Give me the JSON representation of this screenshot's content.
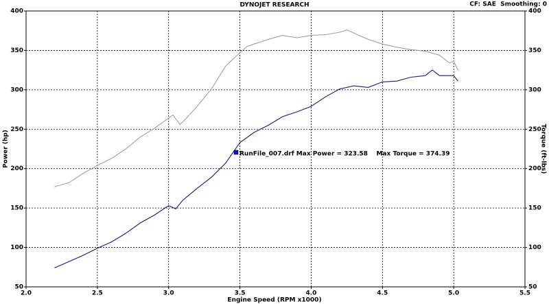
{
  "chart_data": {
    "type": "line",
    "title": "DYNOJET RESEARCH",
    "subtitle": "CF: SAE  Smoothing: 0",
    "x_label": "Engine Speed (RPM x1000)",
    "y_label": "Power (hp)",
    "y2_label": "Torque (ft-lbs)",
    "annotation": "RunFile_007.drf Max Power = 323.58    Max Torque = 374.39",
    "annotation_color": "#1010c0",
    "xlim": [
      2.0,
      5.5
    ],
    "xticks": [
      {
        "value": 2,
        "label": "2.0"
      },
      2.5,
      {
        "value": 3,
        "label": "3.0"
      },
      3.5,
      {
        "value": 4,
        "label": "4.0"
      },
      4.5,
      {
        "value": 5,
        "label": "5.0"
      },
      5.5
    ],
    "ylim": [
      50,
      400
    ],
    "yticks": [
      50,
      100,
      150,
      200,
      250,
      300,
      350,
      400
    ],
    "y2lim": [
      50,
      400
    ],
    "y2ticks": [
      50,
      100,
      150,
      200,
      250,
      300,
      350,
      400
    ],
    "grid": true,
    "series": [
      {
        "color": "#1a1a6e",
        "axis": "y",
        "x": [
          2.2,
          2.4,
          2.5,
          2.6,
          2.7,
          2.8,
          2.9,
          3.0,
          3.05,
          3.1,
          3.2,
          3.3,
          3.4,
          3.5,
          3.6,
          3.7,
          3.8,
          3.9,
          4.0,
          4.1,
          4.2,
          4.3,
          4.4,
          4.5,
          4.6,
          4.7,
          4.8,
          4.85,
          4.9,
          5.0,
          5.03
        ],
        "values": [
          74,
          90,
          99,
          107,
          118,
          131,
          141,
          153,
          149,
          160,
          175,
          189,
          207,
          233,
          246,
          255,
          266,
          272,
          279,
          291,
          301,
          305,
          303,
          310,
          311,
          316,
          318,
          325,
          318,
          318,
          311
        ]
      },
      {
        "color": "#a0a0a0",
        "axis": "y2",
        "x": [
          2.2,
          2.3,
          2.4,
          2.5,
          2.6,
          2.7,
          2.8,
          2.9,
          3.0,
          3.03,
          3.08,
          3.12,
          3.2,
          3.3,
          3.4,
          3.5,
          3.55,
          3.6,
          3.7,
          3.8,
          3.9,
          4.0,
          4.1,
          4.2,
          4.25,
          4.3,
          4.4,
          4.5,
          4.6,
          4.7,
          4.8,
          4.9,
          4.97,
          5.0,
          5.03
        ],
        "values": [
          177,
          182,
          194,
          204,
          213,
          225,
          240,
          251,
          264,
          268,
          256,
          263,
          279,
          301,
          330,
          347,
          355,
          358,
          364,
          369,
          366,
          369,
          370,
          373,
          376,
          372,
          364,
          358,
          354,
          351,
          349,
          344,
          334,
          336,
          325
        ]
      }
    ]
  }
}
